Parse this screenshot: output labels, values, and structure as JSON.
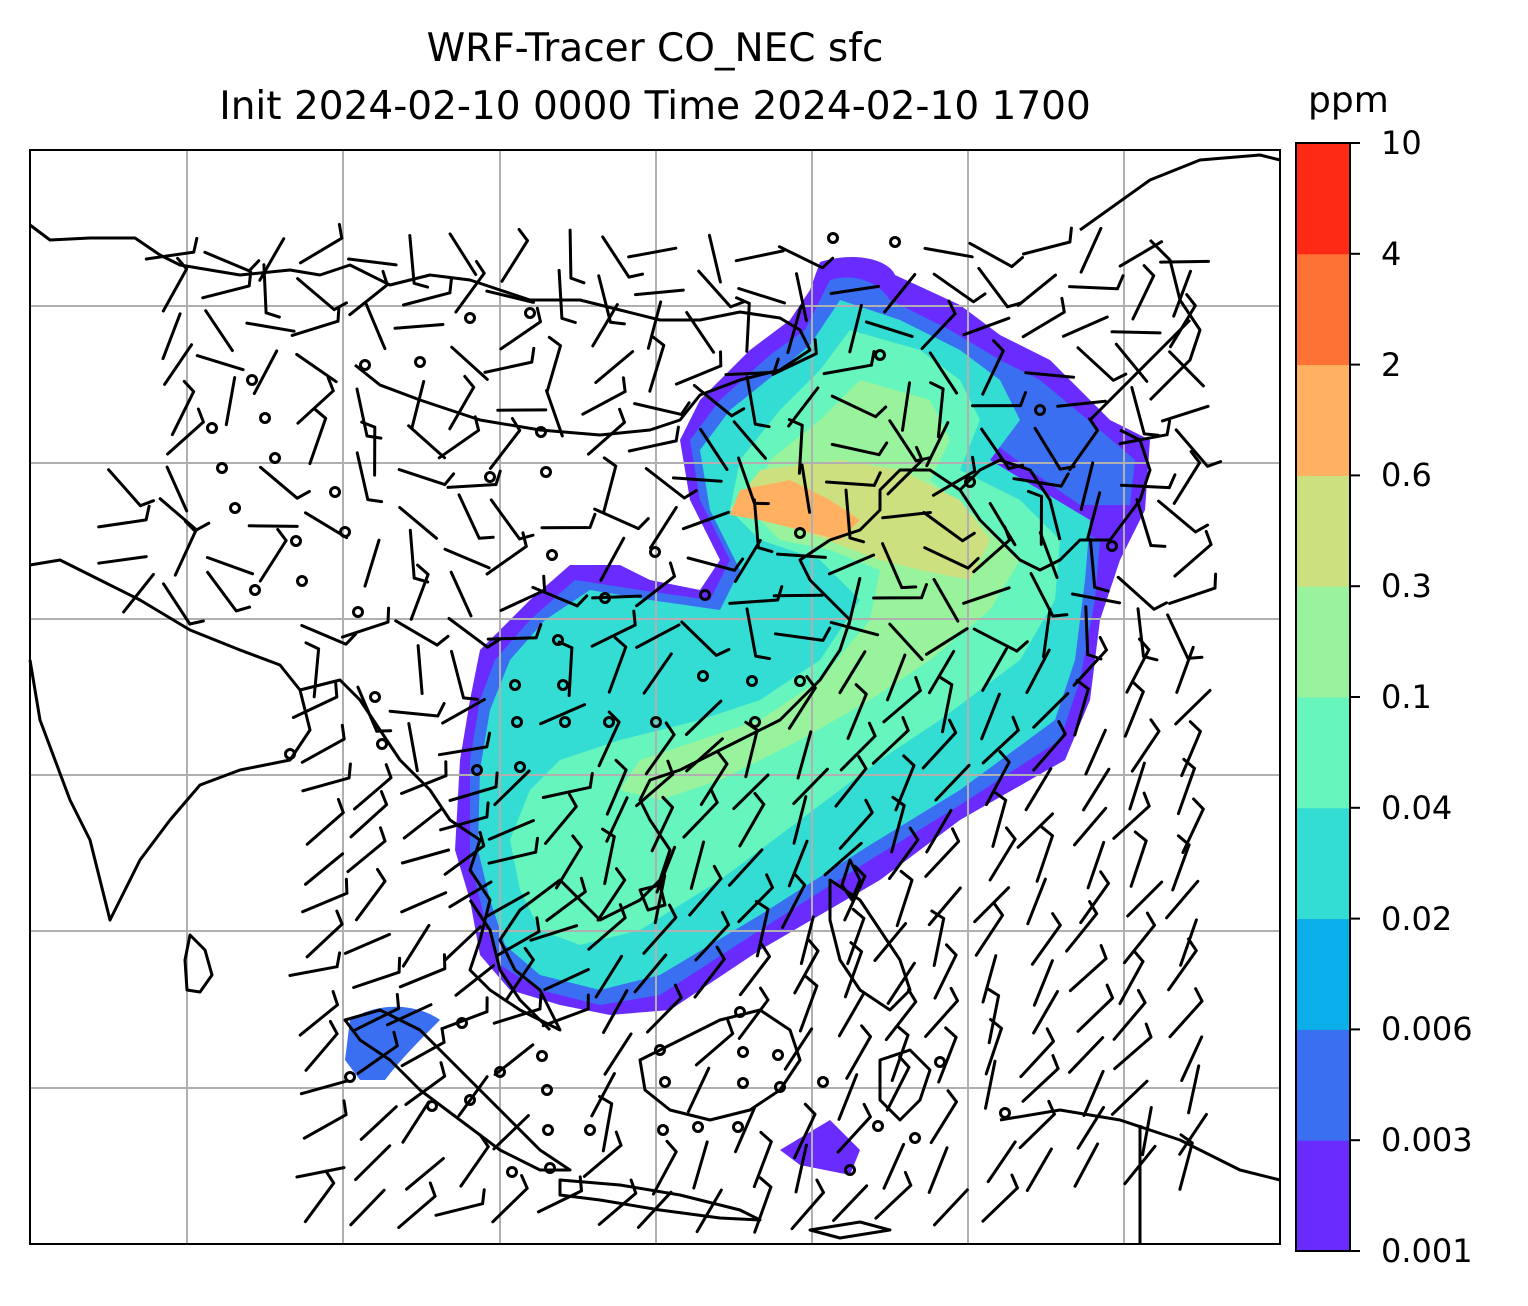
{
  "title": {
    "line1": "WRF-Tracer CO_NEC sfc",
    "line2": "Init 2024-02-10 0000 Time 2024-02-10 1700"
  },
  "colorbar": {
    "unit": "ppm",
    "levels": [
      "0.001",
      "0.003",
      "0.006",
      "0.02",
      "0.04",
      "0.1",
      "0.3",
      "0.6",
      "2",
      "4",
      "10"
    ],
    "colors": [
      "#6a2bff",
      "#3a6ff2",
      "#0aaee8",
      "#33ddd4",
      "#66f5bd",
      "#99f39d",
      "#cde080",
      "#ffb060",
      "#ff7236",
      "#ff2a16"
    ]
  },
  "map": {
    "land_outline_color": "#000000",
    "gridline_color": "#b0b0b0"
  }
}
